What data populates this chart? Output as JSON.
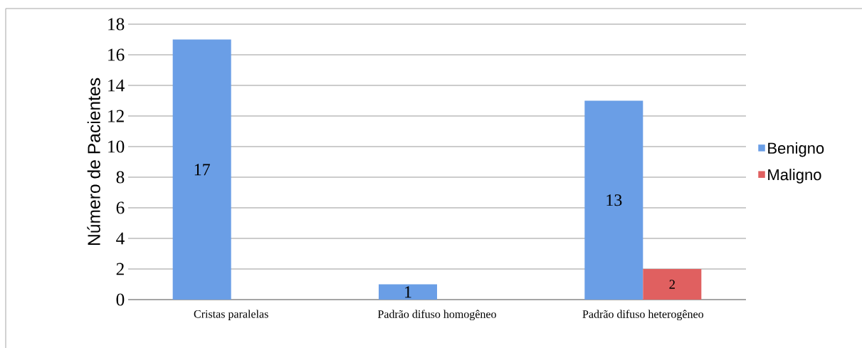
{
  "chart_data": {
    "type": "bar",
    "ylabel": "Número de Pacientes",
    "categories": [
      "Cristas paralelas",
      "Padrão difuso homogêneo",
      "Padrão difuso heterogêneo"
    ],
    "series": [
      {
        "name": "Benigno",
        "color": "#6a9ee6",
        "values": [
          17,
          1,
          13
        ]
      },
      {
        "name": "Maligno",
        "color": "#e06060",
        "values": [
          null,
          null,
          2
        ]
      }
    ],
    "ylim": [
      0,
      18
    ],
    "yticks": [
      0,
      2,
      4,
      6,
      8,
      10,
      12,
      14,
      16,
      18
    ],
    "grid": "y",
    "legend": "right",
    "data_labels": true
  }
}
